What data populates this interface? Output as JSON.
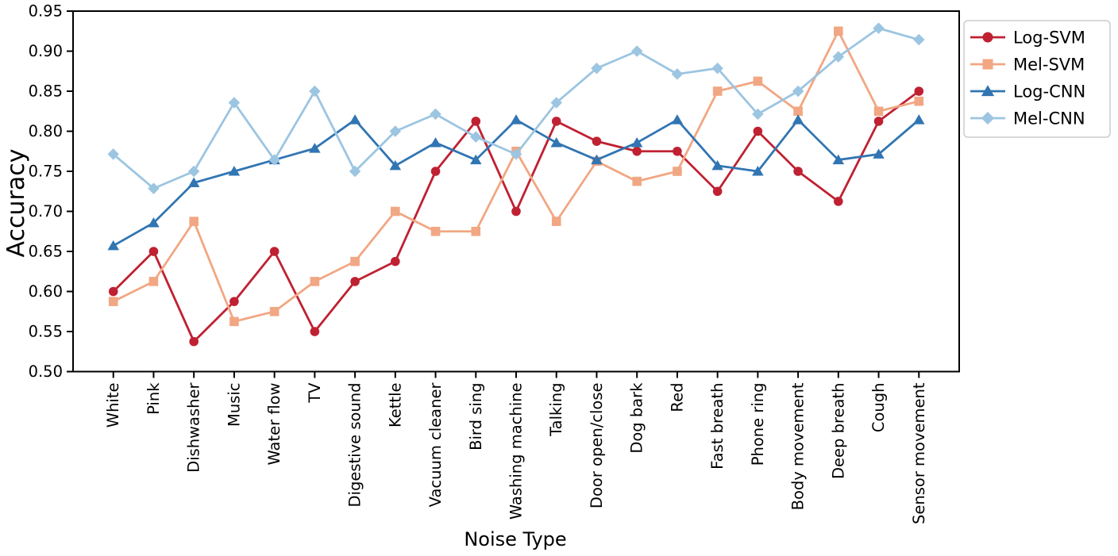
{
  "chart_data": {
    "type": "line",
    "title": "",
    "xlabel": "Noise Type",
    "ylabel": "Accuracy",
    "ylim": [
      0.5,
      0.95
    ],
    "yticks": [
      "0.50",
      "0.55",
      "0.60",
      "0.65",
      "0.70",
      "0.75",
      "0.80",
      "0.85",
      "0.90",
      "0.95"
    ],
    "grid": false,
    "legend_position": "upper right outside",
    "categories": [
      "White",
      "Pink",
      "Dishwasher",
      "Music",
      "Water flow",
      "TV",
      "Digestive sound",
      "Kettle",
      "Vacuum cleaner",
      "Bird sing",
      "Washing machine",
      "Talking",
      "Door open/close",
      "Dog bark",
      "Red",
      "Fast breath",
      "Phone ring",
      "Body movement",
      "Deep breath",
      "Cough",
      "Sensor movement"
    ],
    "series": [
      {
        "name": "Log-SVM",
        "marker": "circle",
        "color": "#bf2132",
        "values": [
          0.6,
          0.65,
          0.5375,
          0.5875,
          0.65,
          0.55,
          0.6125,
          0.6375,
          0.75,
          0.8125,
          0.7,
          0.8125,
          0.7875,
          0.775,
          0.775,
          0.725,
          0.8,
          0.75,
          0.7125,
          0.8125,
          0.85
        ]
      },
      {
        "name": "Mel-SVM",
        "marker": "square",
        "color": "#f1a783",
        "values": [
          0.5875,
          0.6125,
          0.6875,
          0.5625,
          0.575,
          0.6125,
          0.6375,
          0.7,
          0.675,
          0.675,
          0.775,
          0.6875,
          0.7625,
          0.7375,
          0.75,
          0.85,
          0.8625,
          0.825,
          0.925,
          0.825,
          0.8375
        ]
      },
      {
        "name": "Log-CNN",
        "marker": "triangle",
        "color": "#3175b2",
        "values": [
          0.6571,
          0.6857,
          0.7357,
          0.75,
          0.7643,
          0.7786,
          0.8143,
          0.7571,
          0.7857,
          0.7643,
          0.8143,
          0.7857,
          0.7643,
          0.7857,
          0.8143,
          0.7571,
          0.75,
          0.8143,
          0.7643,
          0.7714,
          0.8143
        ]
      },
      {
        "name": "Mel-CNN",
        "marker": "diamond",
        "color": "#9cc5e1",
        "values": [
          0.7714,
          0.7286,
          0.75,
          0.8357,
          0.7643,
          0.85,
          0.75,
          0.8,
          0.8214,
          0.7929,
          0.7714,
          0.8357,
          0.8786,
          0.9,
          0.8714,
          0.8786,
          0.8214,
          0.85,
          0.8929,
          0.9286,
          0.9143
        ]
      }
    ],
    "axis_color": "#000000",
    "legend_border_color": "#cccccc"
  }
}
